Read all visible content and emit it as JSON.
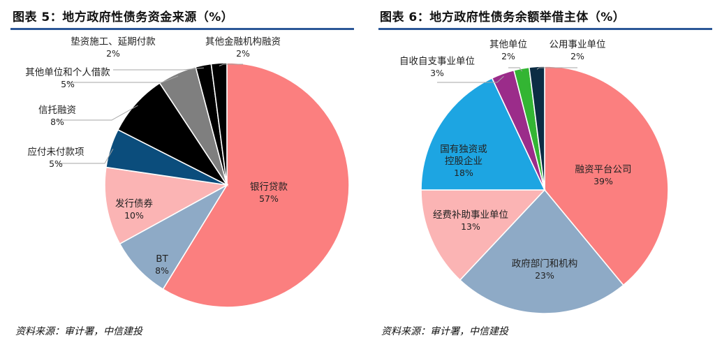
{
  "chart_data": [
    {
      "type": "pie",
      "title": "图表 5：地方政府性债务资金来源（%）",
      "source": "资料来源：审计署，中信建投",
      "slices": [
        {
          "label": "银行贷款",
          "value": 57,
          "value_label": "57%",
          "color": "#fb7f7f"
        },
        {
          "label": "BT",
          "value": 8,
          "value_label": "8%",
          "color": "#8eaac6"
        },
        {
          "label": "发行债券",
          "value": 10,
          "value_label": "10%",
          "color": "#fbb4b4"
        },
        {
          "label": "应付未付款项",
          "value": 5,
          "value_label": "5%",
          "color": "#0b4d7c"
        },
        {
          "label": "信托融资",
          "value": 8,
          "value_label": "8%",
          "color": "#000000"
        },
        {
          "label": "其他单位和个人借款",
          "value": 5,
          "value_label": "5%",
          "color": "#7f7f7f"
        },
        {
          "label": "垫资施工、延期付款",
          "value": 2,
          "value_label": "2%",
          "color": "#000000"
        },
        {
          "label": "其他金融机构融资",
          "value": 2,
          "value_label": "2%",
          "color": "#000000"
        }
      ]
    },
    {
      "type": "pie",
      "title": "图表 6：地方政府性债务余额举借主体（%）",
      "source": "资料来源：审计署，中信建投",
      "slices": [
        {
          "label": "融资平台公司",
          "value": 39,
          "value_label": "39%",
          "color": "#fb7f7f"
        },
        {
          "label": "政府部门和机构",
          "value": 23,
          "value_label": "23%",
          "color": "#8eaac6"
        },
        {
          "label": "经费补助事业单位",
          "value": 13,
          "value_label": "13%",
          "color": "#fbb4b4"
        },
        {
          "label": "国有独资或控股企业",
          "value": 18,
          "value_label": "18%",
          "color": "#1da5e2"
        },
        {
          "label": "自收自支事业单位",
          "value": 3,
          "value_label": "3%",
          "color": "#9b2c8a"
        },
        {
          "label": "其他单位",
          "value": 2,
          "value_label": "2%",
          "color": "#33b533"
        },
        {
          "label": "公用事业单位",
          "value": 2,
          "value_label": "2%",
          "color": "#0c2d44"
        }
      ]
    }
  ]
}
